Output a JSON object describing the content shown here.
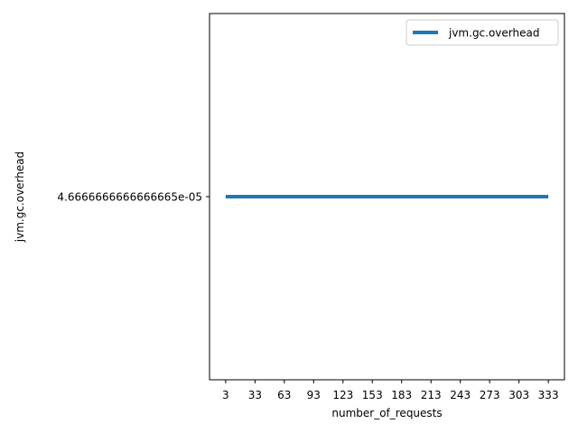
{
  "chart_data": {
    "type": "line",
    "title": "",
    "xlabel": "number_of_requests",
    "ylabel": "jvm.gc.overhead",
    "x": [
      3,
      33,
      63,
      93,
      123,
      153,
      183,
      213,
      243,
      273,
      303,
      333
    ],
    "x_ticks": [
      "3",
      "33",
      "63",
      "93",
      "123",
      "153",
      "183",
      "213",
      "243",
      "273",
      "303",
      "333"
    ],
    "y_ticks": [
      "4.6666666666666665e-05"
    ],
    "series": [
      {
        "name": "jvm.gc.overhead",
        "color": "#1f77b4",
        "values": [
          4.6666666666666665e-05,
          4.6666666666666665e-05,
          4.6666666666666665e-05,
          4.6666666666666665e-05,
          4.6666666666666665e-05,
          4.6666666666666665e-05,
          4.6666666666666665e-05,
          4.6666666666666665e-05,
          4.6666666666666665e-05,
          4.6666666666666665e-05,
          4.6666666666666665e-05,
          4.6666666666666665e-05
        ]
      }
    ],
    "xlim": [
      -13.5,
      349.5
    ],
    "ylim": [
      4.1666666666666665e-05,
      5.1666666666666664e-05
    ],
    "grid": false,
    "legend": "top-right"
  }
}
